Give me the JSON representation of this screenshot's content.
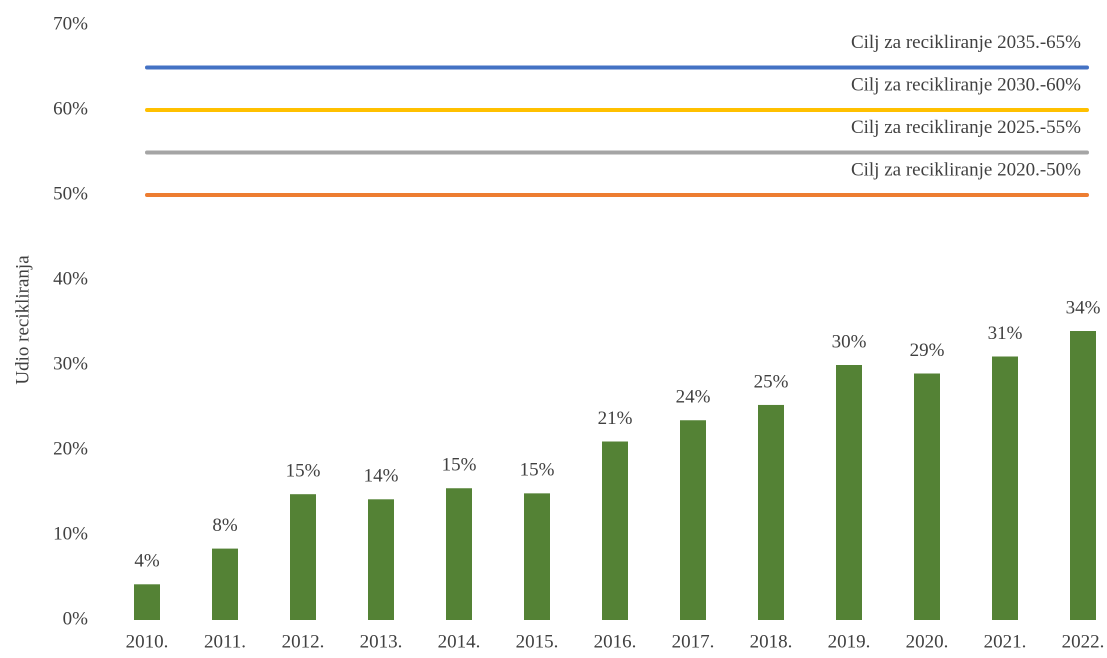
{
  "chart_data": {
    "type": "bar",
    "y_axis_label": "Udio recikliranja",
    "categories": [
      "2010.",
      "2011.",
      "2012.",
      "2013.",
      "2014.",
      "2015.",
      "2016.",
      "2017.",
      "2018.",
      "2019.",
      "2020.",
      "2021.",
      "2022."
    ],
    "values": [
      4.2,
      8.4,
      14.8,
      14.2,
      15.5,
      14.9,
      21,
      23.5,
      25.3,
      30,
      29,
      31,
      34
    ],
    "value_labels": [
      "4%",
      "8%",
      "15%",
      "14%",
      "15%",
      "15%",
      "21%",
      "24%",
      "25%",
      "30%",
      "29%",
      "31%",
      "34%"
    ],
    "color": "#548235",
    "ylim": [
      0,
      70
    ],
    "yticks": [
      {
        "value": 0,
        "label": "0%"
      },
      {
        "value": 10,
        "label": "10%"
      },
      {
        "value": 20,
        "label": "20%"
      },
      {
        "value": 30,
        "label": "30%"
      },
      {
        "value": 40,
        "label": "40%"
      },
      {
        "value": 50,
        "label": "50%"
      },
      {
        "value": 60,
        "label": "60%"
      },
      {
        "value": 70,
        "label": "70%"
      }
    ],
    "reference_lines": [
      {
        "label": "Cilj za recikliranje 2035.-65%",
        "value": 65,
        "color": "#4472c4"
      },
      {
        "label": "Cilj za recikliranje 2030.-60%",
        "value": 60,
        "color": "#ffc000"
      },
      {
        "label": "Cilj za recikliranje 2025.-55%",
        "value": 55,
        "color": "#a5a5a5"
      },
      {
        "label": "Cilj za recikliranje 2020.-50%",
        "value": 50,
        "color": "#ed7d31"
      }
    ]
  }
}
